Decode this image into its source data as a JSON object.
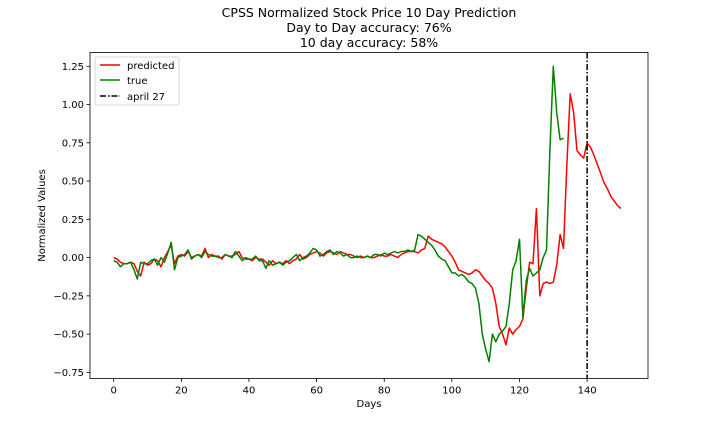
{
  "chart_data": {
    "type": "line",
    "title_lines": [
      "CPSS Normalized Stock Price 10 Day Prediction",
      "Day to Day accuracy: 76%",
      "10 day accuracy: 58%"
    ],
    "xlabel": "Days",
    "ylabel": "Normalized Values",
    "xlim": [
      -7,
      158
    ],
    "ylim": [
      -0.79,
      1.34
    ],
    "xticks": [
      0,
      20,
      40,
      60,
      80,
      100,
      120,
      140
    ],
    "yticks": [
      -0.75,
      -0.5,
      -0.25,
      0.0,
      0.25,
      0.5,
      0.75,
      1.0,
      1.25
    ],
    "ytick_labels": [
      "−0.75",
      "−0.50",
      "−0.25",
      "0.00",
      "0.25",
      "0.50",
      "0.75",
      "1.00",
      "1.25"
    ],
    "legend_position": "top-left",
    "vline": {
      "x": 140,
      "label": "april 27",
      "color": "#000000"
    },
    "series": [
      {
        "name": "predicted",
        "color": "#ff0000",
        "points": [
          [
            0,
            0.0
          ],
          [
            1,
            -0.01
          ],
          [
            2,
            -0.03
          ],
          [
            3,
            -0.04
          ],
          [
            4,
            -0.04
          ],
          [
            5,
            -0.03
          ],
          [
            6,
            -0.04
          ],
          [
            7,
            -0.09
          ],
          [
            8,
            -0.12
          ],
          [
            9,
            -0.03
          ],
          [
            10,
            -0.05
          ],
          [
            11,
            -0.04
          ],
          [
            12,
            -0.01
          ],
          [
            13,
            -0.02
          ],
          [
            14,
            -0.06
          ],
          [
            15,
            0.0
          ],
          [
            16,
            0.04
          ],
          [
            17,
            0.08
          ],
          [
            18,
            -0.04
          ],
          [
            19,
            0.01
          ],
          [
            20,
            0.02
          ],
          [
            21,
            0.01
          ],
          [
            22,
            0.04
          ],
          [
            23,
            0.0
          ],
          [
            24,
            0.01
          ],
          [
            25,
            0.02
          ],
          [
            26,
            0.01
          ],
          [
            27,
            0.06
          ],
          [
            28,
            0.0
          ],
          [
            29,
            0.02
          ],
          [
            30,
            0.01
          ],
          [
            31,
            0.01
          ],
          [
            32,
            -0.01
          ],
          [
            33,
            0.02
          ],
          [
            34,
            0.01
          ],
          [
            35,
            0.01
          ],
          [
            36,
            0.02
          ],
          [
            37,
            0.04
          ],
          [
            38,
            0.0
          ],
          [
            39,
            -0.01
          ],
          [
            40,
            -0.01
          ],
          [
            41,
            -0.02
          ],
          [
            42,
            0.0
          ],
          [
            43,
            -0.01
          ],
          [
            44,
            -0.01
          ],
          [
            45,
            -0.03
          ],
          [
            46,
            -0.05
          ],
          [
            47,
            -0.02
          ],
          [
            48,
            -0.04
          ],
          [
            49,
            -0.03
          ],
          [
            50,
            -0.04
          ],
          [
            51,
            -0.02
          ],
          [
            52,
            -0.04
          ],
          [
            53,
            -0.02
          ],
          [
            54,
            -0.01
          ],
          [
            55,
            0.02
          ],
          [
            56,
            -0.01
          ],
          [
            57,
            0.0
          ],
          [
            58,
            0.02
          ],
          [
            59,
            0.03
          ],
          [
            60,
            0.04
          ],
          [
            61,
            0.03
          ],
          [
            62,
            0.01
          ],
          [
            63,
            0.03
          ],
          [
            64,
            0.04
          ],
          [
            65,
            0.03
          ],
          [
            66,
            0.02
          ],
          [
            67,
            0.04
          ],
          [
            68,
            0.03
          ],
          [
            69,
            0.02
          ],
          [
            70,
            0.02
          ],
          [
            71,
            0.01
          ],
          [
            72,
            0.0
          ],
          [
            73,
            0.01
          ],
          [
            74,
            0.0
          ],
          [
            75,
            0.01
          ],
          [
            76,
            0.0
          ],
          [
            77,
            0.0
          ],
          [
            78,
            0.01
          ],
          [
            79,
            0.02
          ],
          [
            80,
            0.01
          ],
          [
            81,
            0.01
          ],
          [
            82,
            0.02
          ],
          [
            83,
            0.01
          ],
          [
            84,
            0.0
          ],
          [
            85,
            0.02
          ],
          [
            86,
            0.03
          ],
          [
            87,
            0.04
          ],
          [
            88,
            0.04
          ],
          [
            89,
            0.04
          ],
          [
            90,
            0.03
          ],
          [
            91,
            0.05
          ],
          [
            92,
            0.06
          ],
          [
            93,
            0.14
          ],
          [
            94,
            0.12
          ],
          [
            95,
            0.11
          ],
          [
            96,
            0.1
          ],
          [
            97,
            0.09
          ],
          [
            98,
            0.07
          ],
          [
            99,
            0.04
          ],
          [
            100,
            0.01
          ],
          [
            101,
            -0.03
          ],
          [
            102,
            -0.08
          ],
          [
            103,
            -0.09
          ],
          [
            104,
            -0.1
          ],
          [
            105,
            -0.11
          ],
          [
            106,
            -0.1
          ],
          [
            107,
            -0.08
          ],
          [
            108,
            -0.09
          ],
          [
            109,
            -0.12
          ],
          [
            110,
            -0.15
          ],
          [
            111,
            -0.17
          ],
          [
            112,
            -0.2
          ],
          [
            113,
            -0.3
          ],
          [
            114,
            -0.45
          ],
          [
            115,
            -0.5
          ],
          [
            116,
            -0.57
          ],
          [
            117,
            -0.46
          ],
          [
            118,
            -0.5
          ],
          [
            119,
            -0.47
          ],
          [
            120,
            -0.45
          ],
          [
            121,
            -0.4
          ],
          [
            122,
            -0.2
          ],
          [
            123,
            -0.03
          ],
          [
            124,
            -0.04
          ],
          [
            125,
            0.32
          ],
          [
            126,
            -0.25
          ],
          [
            127,
            -0.17
          ],
          [
            128,
            -0.16
          ],
          [
            129,
            -0.17
          ],
          [
            130,
            -0.16
          ],
          [
            131,
            -0.05
          ],
          [
            132,
            0.15
          ],
          [
            133,
            0.06
          ],
          [
            134,
            0.6
          ],
          [
            135,
            1.07
          ],
          [
            136,
            0.95
          ],
          [
            137,
            0.7
          ],
          [
            138,
            0.67
          ],
          [
            139,
            0.65
          ],
          [
            140,
            0.75
          ],
          [
            141,
            0.72
          ],
          [
            142,
            0.67
          ],
          [
            143,
            0.61
          ],
          [
            144,
            0.55
          ],
          [
            145,
            0.49
          ],
          [
            146,
            0.45
          ],
          [
            147,
            0.4
          ],
          [
            148,
            0.37
          ],
          [
            149,
            0.34
          ],
          [
            150,
            0.32
          ]
        ]
      },
      {
        "name": "true",
        "color": "#008000",
        "points": [
          [
            0,
            -0.02
          ],
          [
            1,
            -0.03
          ],
          [
            2,
            -0.06
          ],
          [
            3,
            -0.04
          ],
          [
            4,
            -0.04
          ],
          [
            5,
            -0.03
          ],
          [
            6,
            -0.08
          ],
          [
            7,
            -0.14
          ],
          [
            8,
            -0.03
          ],
          [
            9,
            -0.04
          ],
          [
            10,
            -0.04
          ],
          [
            11,
            -0.02
          ],
          [
            12,
            -0.01
          ],
          [
            13,
            -0.05
          ],
          [
            14,
            0.0
          ],
          [
            15,
            -0.03
          ],
          [
            16,
            0.03
          ],
          [
            17,
            0.1
          ],
          [
            18,
            -0.08
          ],
          [
            19,
            0.0
          ],
          [
            20,
            0.01
          ],
          [
            21,
            0.02
          ],
          [
            22,
            0.05
          ],
          [
            23,
            -0.01
          ],
          [
            24,
            0.01
          ],
          [
            25,
            0.02
          ],
          [
            26,
            0.0
          ],
          [
            27,
            0.04
          ],
          [
            28,
            0.02
          ],
          [
            29,
            0.01
          ],
          [
            30,
            0.01
          ],
          [
            31,
            0.0
          ],
          [
            32,
            0.0
          ],
          [
            33,
            0.02
          ],
          [
            34,
            0.01
          ],
          [
            35,
            0.0
          ],
          [
            36,
            0.04
          ],
          [
            37,
            0.01
          ],
          [
            38,
            -0.02
          ],
          [
            39,
            0.0
          ],
          [
            40,
            -0.01
          ],
          [
            41,
            -0.01
          ],
          [
            42,
            0.01
          ],
          [
            43,
            -0.02
          ],
          [
            44,
            -0.02
          ],
          [
            45,
            -0.07
          ],
          [
            46,
            -0.02
          ],
          [
            47,
            -0.05
          ],
          [
            48,
            -0.04
          ],
          [
            49,
            -0.03
          ],
          [
            50,
            -0.05
          ],
          [
            51,
            -0.03
          ],
          [
            52,
            -0.02
          ],
          [
            53,
            0.0
          ],
          [
            54,
            0.02
          ],
          [
            55,
            -0.02
          ],
          [
            56,
            0.0
          ],
          [
            57,
            0.01
          ],
          [
            58,
            0.03
          ],
          [
            59,
            0.06
          ],
          [
            60,
            0.05
          ],
          [
            61,
            0.01
          ],
          [
            62,
            0.02
          ],
          [
            63,
            0.04
          ],
          [
            64,
            0.05
          ],
          [
            65,
            0.02
          ],
          [
            66,
            0.04
          ],
          [
            67,
            0.03
          ],
          [
            68,
            0.01
          ],
          [
            69,
            0.02
          ],
          [
            70,
            0.0
          ],
          [
            71,
            0.0
          ],
          [
            72,
            0.01
          ],
          [
            73,
            0.0
          ],
          [
            74,
            0.0
          ],
          [
            75,
            0.01
          ],
          [
            76,
            0.0
          ],
          [
            77,
            0.02
          ],
          [
            78,
            0.02
          ],
          [
            79,
            0.01
          ],
          [
            80,
            0.03
          ],
          [
            81,
            0.02
          ],
          [
            82,
            0.03
          ],
          [
            83,
            0.04
          ],
          [
            84,
            0.03
          ],
          [
            85,
            0.04
          ],
          [
            86,
            0.04
          ],
          [
            87,
            0.05
          ],
          [
            88,
            0.04
          ],
          [
            89,
            0.05
          ],
          [
            90,
            0.15
          ],
          [
            91,
            0.14
          ],
          [
            92,
            0.12
          ],
          [
            93,
            0.1
          ],
          [
            94,
            0.08
          ],
          [
            95,
            0.05
          ],
          [
            96,
            0.01
          ],
          [
            97,
            -0.01
          ],
          [
            98,
            -0.02
          ],
          [
            99,
            -0.06
          ],
          [
            100,
            -0.1
          ],
          [
            101,
            -0.1
          ],
          [
            102,
            -0.12
          ],
          [
            103,
            -0.11
          ],
          [
            104,
            -0.13
          ],
          [
            105,
            -0.16
          ],
          [
            106,
            -0.17
          ],
          [
            107,
            -0.2
          ],
          [
            108,
            -0.3
          ],
          [
            109,
            -0.5
          ],
          [
            110,
            -0.6
          ],
          [
            111,
            -0.68
          ],
          [
            112,
            -0.5
          ],
          [
            113,
            -0.55
          ],
          [
            114,
            -0.5
          ],
          [
            115,
            -0.48
          ],
          [
            116,
            -0.45
          ],
          [
            117,
            -0.3
          ],
          [
            118,
            -0.08
          ],
          [
            119,
            -0.02
          ],
          [
            120,
            0.12
          ],
          [
            121,
            -0.39
          ],
          [
            122,
            -0.15
          ],
          [
            123,
            -0.07
          ],
          [
            124,
            -0.12
          ],
          [
            125,
            -0.1
          ],
          [
            126,
            -0.08
          ],
          [
            127,
            0.0
          ],
          [
            128,
            0.05
          ],
          [
            129,
            0.7
          ],
          [
            130,
            1.25
          ],
          [
            131,
            0.95
          ],
          [
            132,
            0.77
          ],
          [
            133,
            0.78
          ]
        ]
      }
    ]
  }
}
